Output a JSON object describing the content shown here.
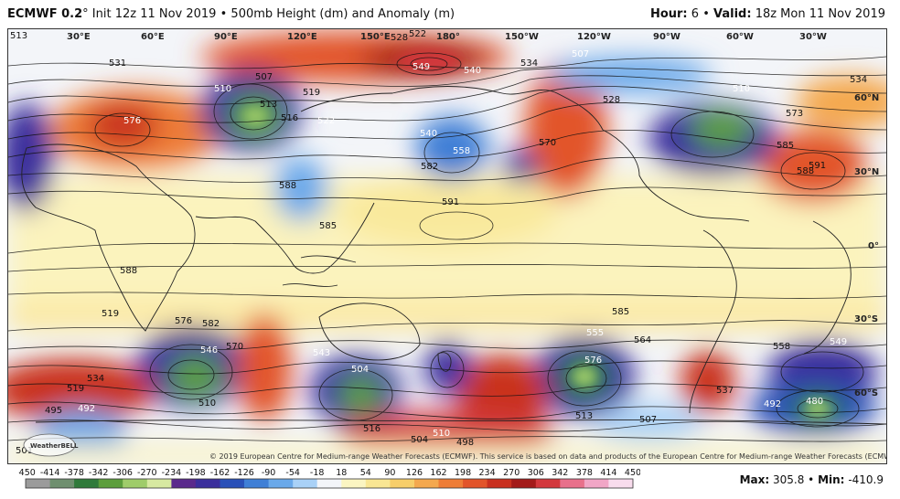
{
  "header": {
    "model": "ECMWF 0.2",
    "degree_symbol": "°",
    "init": "Init 12z 11 Nov 2019",
    "bullet": "•",
    "product": "500mb Height (dm) and Anomaly (m)",
    "hour_label": "Hour:",
    "hour_value": "6",
    "valid_label": "Valid:",
    "valid_value": "18z Mon 11 Nov 2019"
  },
  "map": {
    "longitude_labels": [
      "30°E",
      "60°E",
      "90°E",
      "120°E",
      "150°E",
      "180°",
      "150°W",
      "120°W",
      "90°W",
      "60°W",
      "30°W"
    ],
    "latitude_labels": [
      "60°N",
      "30°N",
      "0°",
      "30°S",
      "60°S"
    ],
    "height_labels": [
      "513",
      "531",
      "507",
      "510",
      "513",
      "519",
      "528",
      "522",
      "549",
      "540",
      "534",
      "507",
      "528",
      "510",
      "534",
      "576",
      "516",
      "522",
      "540",
      "558",
      "570",
      "573",
      "585",
      "591",
      "588",
      "582",
      "591",
      "588",
      "585",
      "588",
      "585",
      "576",
      "582",
      "519",
      "546",
      "570",
      "504",
      "543",
      "555",
      "576",
      "564",
      "558",
      "549",
      "534",
      "519",
      "495",
      "492",
      "510",
      "516",
      "504",
      "498",
      "510",
      "537",
      "492",
      "480",
      "501",
      "507",
      "513"
    ],
    "copyright": "© 2019 European Centre for Medium-range Weather Forecasts (ECMWF). This service is based on data and products of the European Centre for Medium-range Weather Forecasts (ECMWF).",
    "logo_text": "WeatherBELL"
  },
  "colorbar": {
    "ticks": [
      "-450",
      "-414",
      "-378",
      "-342",
      "-306",
      "-270",
      "-234",
      "-198",
      "-162",
      "-126",
      "-90",
      "-54",
      "-18",
      "18",
      "54",
      "90",
      "126",
      "162",
      "198",
      "234",
      "270",
      "306",
      "342",
      "378",
      "414",
      "450"
    ],
    "colors": [
      "#9b9b9b",
      "#6f8f6f",
      "#2f7a3a",
      "#5c9e3c",
      "#9fcc6a",
      "#d7e9a1",
      "#5a2a8c",
      "#3b2f9c",
      "#2950b8",
      "#3f7fd6",
      "#6aa9ea",
      "#a9d1f7",
      "#f3f5f9",
      "#fbf5c2",
      "#f9e693",
      "#f7ce6a",
      "#f4a84e",
      "#ee7d37",
      "#e2542a",
      "#c9301f",
      "#a31a19",
      "#d3383d",
      "#e8708b",
      "#f1a6c6",
      "#f8dced"
    ]
  },
  "stats": {
    "max_label": "Max:",
    "max_value": "305.8",
    "sep": "•",
    "min_label": "Min:",
    "min_value": "-410.9"
  }
}
